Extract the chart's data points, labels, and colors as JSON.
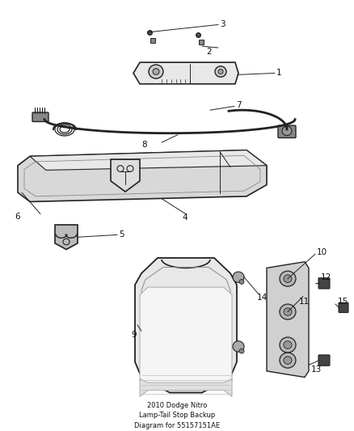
{
  "title": "2010 Dodge Nitro\nLamp-Tail Stop Backup\nDiagram for 55157151AE",
  "background_color": "#ffffff",
  "fig_width": 4.38,
  "fig_height": 5.33,
  "dpi": 100,
  "line_color": "#222222",
  "text_color": "#111111",
  "font_size": 7.5
}
